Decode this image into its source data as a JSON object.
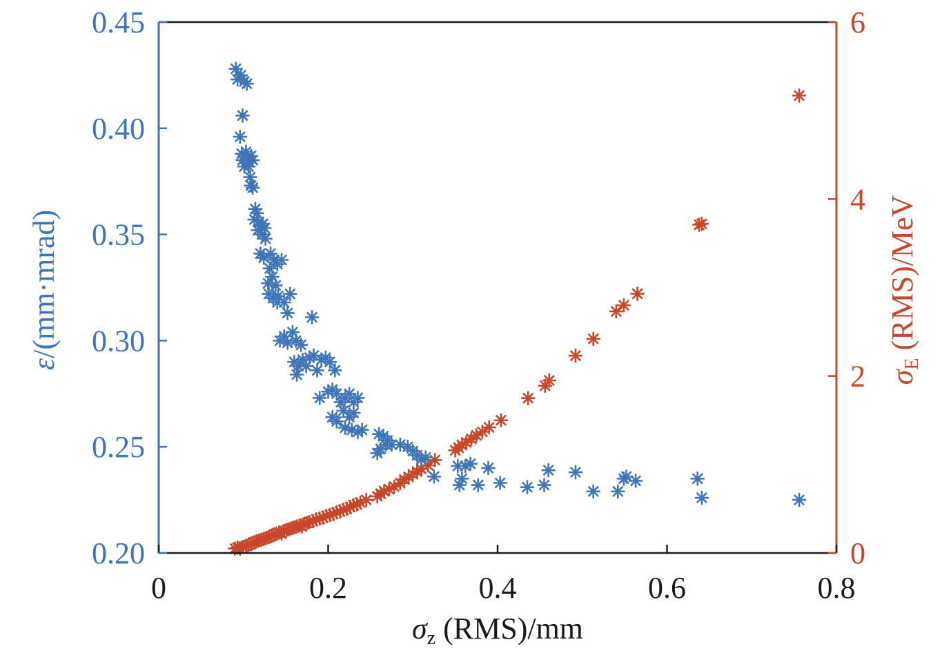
{
  "chart_data": {
    "type": "scatter",
    "marker": "asterisk",
    "colors": {
      "left": "#3f74b6",
      "right": "#c8472a",
      "frame": "#1a1a1a"
    },
    "grid": false,
    "xlabel": {
      "symbol": "σ",
      "sub": "z",
      "rest": " (RMS)/mm"
    },
    "ylabel_left": {
      "symbol": "ε",
      "rest": "/(mm·mrad)"
    },
    "ylabel_right": {
      "symbol": "σ",
      "sub": "E",
      "rest": " (RMS)/MeV"
    },
    "xlim": [
      0,
      0.8
    ],
    "ylim_left": [
      0.2,
      0.45
    ],
    "ylim_right": [
      0,
      6
    ],
    "xticks": [
      "0",
      "0.2",
      "0.4",
      "0.6",
      "0.8"
    ],
    "yticks_left": [
      "0.20",
      "0.25",
      "0.30",
      "0.35",
      "0.40",
      "0.45"
    ],
    "yticks_right": [
      "0",
      "2",
      "4",
      "6"
    ],
    "series": [
      {
        "axis": "left",
        "points": [
          [
            0.091,
            0.428
          ],
          [
            0.093,
            0.423
          ],
          [
            0.097,
            0.425
          ],
          [
            0.101,
            0.422
          ],
          [
            0.104,
            0.421
          ],
          [
            0.099,
            0.406
          ],
          [
            0.096,
            0.396
          ],
          [
            0.098,
            0.388
          ],
          [
            0.099,
            0.385
          ],
          [
            0.101,
            0.382
          ],
          [
            0.103,
            0.389
          ],
          [
            0.105,
            0.386
          ],
          [
            0.107,
            0.384
          ],
          [
            0.109,
            0.387
          ],
          [
            0.111,
            0.385
          ],
          [
            0.106,
            0.382
          ],
          [
            0.108,
            0.377
          ],
          [
            0.109,
            0.373
          ],
          [
            0.111,
            0.372
          ],
          [
            0.114,
            0.362
          ],
          [
            0.116,
            0.36
          ],
          [
            0.113,
            0.357
          ],
          [
            0.118,
            0.356
          ],
          [
            0.117,
            0.352
          ],
          [
            0.121,
            0.354
          ],
          [
            0.123,
            0.355
          ],
          [
            0.125,
            0.353
          ],
          [
            0.122,
            0.35
          ],
          [
            0.126,
            0.348
          ],
          [
            0.12,
            0.341
          ],
          [
            0.124,
            0.339
          ],
          [
            0.132,
            0.341
          ],
          [
            0.136,
            0.338
          ],
          [
            0.14,
            0.336
          ],
          [
            0.145,
            0.338
          ],
          [
            0.131,
            0.334
          ],
          [
            0.134,
            0.33
          ],
          [
            0.129,
            0.327
          ],
          [
            0.138,
            0.326
          ],
          [
            0.13,
            0.322
          ],
          [
            0.135,
            0.32
          ],
          [
            0.141,
            0.321
          ],
          [
            0.148,
            0.318
          ],
          [
            0.155,
            0.322
          ],
          [
            0.14,
            0.318
          ],
          [
            0.152,
            0.313
          ],
          [
            0.143,
            0.3
          ],
          [
            0.148,
            0.302
          ],
          [
            0.152,
            0.299
          ],
          [
            0.158,
            0.304
          ],
          [
            0.162,
            0.3
          ],
          [
            0.168,
            0.298
          ],
          [
            0.16,
            0.29
          ],
          [
            0.165,
            0.288
          ],
          [
            0.17,
            0.291
          ],
          [
            0.163,
            0.284
          ],
          [
            0.174,
            0.288
          ],
          [
            0.178,
            0.292
          ],
          [
            0.183,
            0.293
          ],
          [
            0.187,
            0.286
          ],
          [
            0.192,
            0.291
          ],
          [
            0.197,
            0.292
          ],
          [
            0.202,
            0.29
          ],
          [
            0.208,
            0.286
          ],
          [
            0.181,
            0.311
          ],
          [
            0.19,
            0.273
          ],
          [
            0.2,
            0.276
          ],
          [
            0.205,
            0.277
          ],
          [
            0.21,
            0.275
          ],
          [
            0.215,
            0.271
          ],
          [
            0.22,
            0.273
          ],
          [
            0.225,
            0.275
          ],
          [
            0.23,
            0.271
          ],
          [
            0.235,
            0.273
          ],
          [
            0.218,
            0.267
          ],
          [
            0.225,
            0.264
          ],
          [
            0.23,
            0.266
          ],
          [
            0.205,
            0.264
          ],
          [
            0.21,
            0.262
          ],
          [
            0.22,
            0.259
          ],
          [
            0.228,
            0.258
          ],
          [
            0.235,
            0.257
          ],
          [
            0.24,
            0.258
          ],
          [
            0.26,
            0.256
          ],
          [
            0.265,
            0.255
          ],
          [
            0.27,
            0.253
          ],
          [
            0.275,
            0.251
          ],
          [
            0.285,
            0.251
          ],
          [
            0.294,
            0.25
          ],
          [
            0.3,
            0.248
          ],
          [
            0.305,
            0.246
          ],
          [
            0.31,
            0.244
          ],
          [
            0.315,
            0.245
          ],
          [
            0.262,
            0.249
          ],
          [
            0.268,
            0.251
          ],
          [
            0.258,
            0.247
          ],
          [
            0.325,
            0.236
          ],
          [
            0.355,
            0.232
          ],
          [
            0.358,
            0.235
          ],
          [
            0.353,
            0.241
          ],
          [
            0.362,
            0.241
          ],
          [
            0.368,
            0.242
          ],
          [
            0.377,
            0.232
          ],
          [
            0.389,
            0.24
          ],
          [
            0.403,
            0.233
          ],
          [
            0.435,
            0.231
          ],
          [
            0.455,
            0.232
          ],
          [
            0.46,
            0.239
          ],
          [
            0.492,
            0.238
          ],
          [
            0.513,
            0.229
          ],
          [
            0.542,
            0.229
          ],
          [
            0.549,
            0.235
          ],
          [
            0.552,
            0.236
          ],
          [
            0.563,
            0.234
          ],
          [
            0.636,
            0.235
          ],
          [
            0.641,
            0.226
          ],
          [
            0.756,
            0.225
          ]
        ]
      },
      {
        "axis": "right",
        "points": [
          [
            0.09,
            0.05
          ],
          [
            0.093,
            0.06
          ],
          [
            0.096,
            0.05
          ],
          [
            0.1,
            0.07
          ],
          [
            0.103,
            0.08
          ],
          [
            0.106,
            0.09
          ],
          [
            0.109,
            0.1
          ],
          [
            0.112,
            0.12
          ],
          [
            0.115,
            0.13
          ],
          [
            0.118,
            0.14
          ],
          [
            0.121,
            0.15
          ],
          [
            0.124,
            0.16
          ],
          [
            0.127,
            0.17
          ],
          [
            0.13,
            0.18
          ],
          [
            0.133,
            0.19
          ],
          [
            0.136,
            0.21
          ],
          [
            0.139,
            0.22
          ],
          [
            0.142,
            0.23
          ],
          [
            0.145,
            0.22
          ],
          [
            0.148,
            0.25
          ],
          [
            0.151,
            0.26
          ],
          [
            0.154,
            0.27
          ],
          [
            0.157,
            0.28
          ],
          [
            0.16,
            0.29
          ],
          [
            0.163,
            0.3
          ],
          [
            0.166,
            0.31
          ],
          [
            0.169,
            0.3
          ],
          [
            0.172,
            0.33
          ],
          [
            0.175,
            0.34
          ],
          [
            0.178,
            0.35
          ],
          [
            0.182,
            0.36
          ],
          [
            0.186,
            0.38
          ],
          [
            0.19,
            0.39
          ],
          [
            0.194,
            0.4
          ],
          [
            0.198,
            0.42
          ],
          [
            0.202,
            0.43
          ],
          [
            0.206,
            0.44
          ],
          [
            0.21,
            0.46
          ],
          [
            0.214,
            0.47
          ],
          [
            0.218,
            0.49
          ],
          [
            0.222,
            0.5
          ],
          [
            0.226,
            0.52
          ],
          [
            0.23,
            0.54
          ],
          [
            0.234,
            0.55
          ],
          [
            0.238,
            0.57
          ],
          [
            0.245,
            0.6
          ],
          [
            0.258,
            0.64
          ],
          [
            0.262,
            0.67
          ],
          [
            0.266,
            0.7
          ],
          [
            0.272,
            0.72
          ],
          [
            0.278,
            0.75
          ],
          [
            0.285,
            0.79
          ],
          [
            0.29,
            0.83
          ],
          [
            0.295,
            0.86
          ],
          [
            0.3,
            0.89
          ],
          [
            0.305,
            0.92
          ],
          [
            0.31,
            0.95
          ],
          [
            0.318,
            0.99
          ],
          [
            0.326,
            1.05
          ],
          [
            0.35,
            1.16
          ],
          [
            0.354,
            1.19
          ],
          [
            0.358,
            1.22
          ],
          [
            0.363,
            1.25
          ],
          [
            0.369,
            1.29
          ],
          [
            0.375,
            1.33
          ],
          [
            0.382,
            1.37
          ],
          [
            0.39,
            1.42
          ],
          [
            0.404,
            1.5
          ],
          [
            0.436,
            1.75
          ],
          [
            0.456,
            1.89
          ],
          [
            0.461,
            1.95
          ],
          [
            0.492,
            2.23
          ],
          [
            0.513,
            2.42
          ],
          [
            0.54,
            2.73
          ],
          [
            0.549,
            2.8
          ],
          [
            0.565,
            2.93
          ],
          [
            0.638,
            3.71
          ],
          [
            0.641,
            3.72
          ],
          [
            0.756,
            5.17
          ]
        ]
      }
    ]
  }
}
